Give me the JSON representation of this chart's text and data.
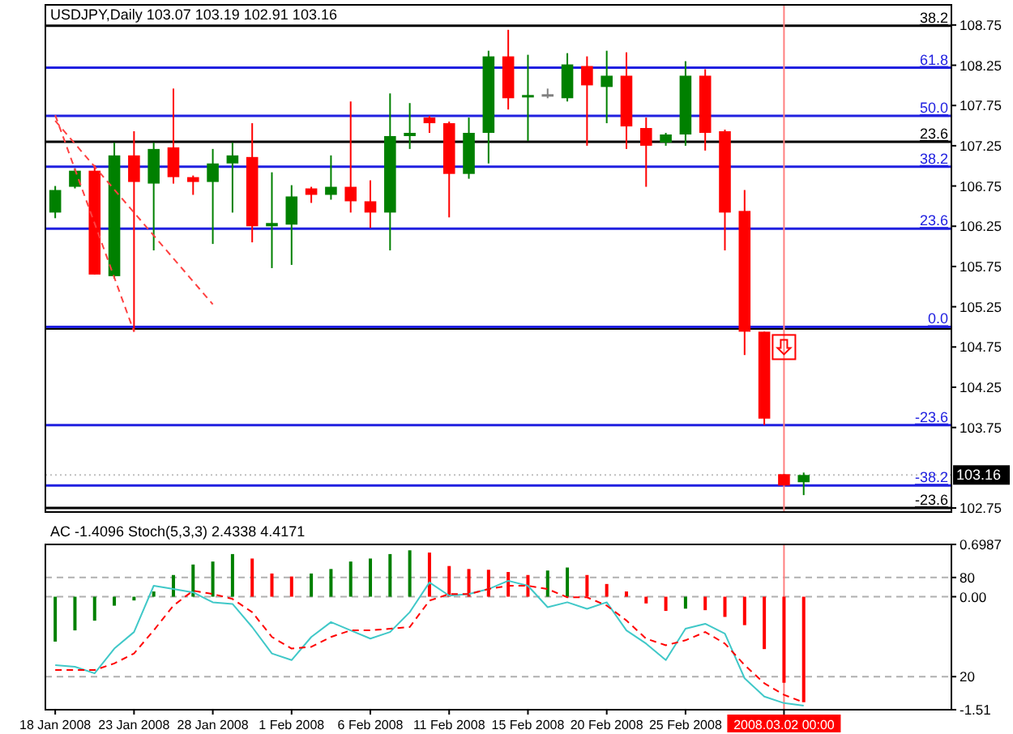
{
  "chart_data": [
    {
      "type": "candlestick",
      "title": "USDJPY,Daily  103.07 103.19 102.91 103.16",
      "tick_labels": "y",
      "categories": [
        "18 Jan 2008",
        null,
        null,
        null,
        "23 Jan 2008",
        null,
        null,
        null,
        "28 Jan 2008",
        null,
        null,
        null,
        "1 Feb 2008",
        null,
        null,
        null,
        "6 Feb 2008",
        null,
        null,
        null,
        "11 Feb 2008",
        null,
        null,
        null,
        "15 Feb 2008",
        null,
        null,
        null,
        "20 Feb 2008",
        null,
        null,
        null,
        "25 Feb 2008",
        null,
        null,
        null,
        null,
        "2008.03.02 00:00",
        null,
        null,
        null,
        null,
        null,
        null,
        null,
        null
      ],
      "ohlc": [
        [
          106.42,
          106.75,
          106.35,
          106.7
        ],
        [
          106.74,
          106.97,
          106.72,
          106.94
        ],
        [
          106.94,
          107.01,
          105.65,
          105.65
        ],
        [
          105.63,
          107.29,
          105.6,
          107.13
        ],
        [
          107.13,
          107.43,
          104.94,
          106.8
        ],
        [
          106.78,
          107.29,
          105.95,
          107.21
        ],
        [
          107.23,
          107.96,
          106.78,
          106.86
        ],
        [
          106.86,
          106.88,
          106.64,
          106.8
        ],
        [
          106.8,
          107.21,
          106.03,
          107.03
        ],
        [
          107.03,
          107.29,
          106.42,
          107.13
        ],
        [
          107.11,
          107.53,
          106.05,
          106.25
        ],
        [
          106.25,
          106.92,
          105.73,
          106.29
        ],
        [
          106.27,
          106.76,
          105.77,
          106.62
        ],
        [
          106.72,
          106.74,
          106.54,
          106.64
        ],
        [
          106.64,
          107.13,
          106.58,
          106.74
        ],
        [
          106.74,
          107.8,
          106.42,
          106.56
        ],
        [
          106.56,
          106.82,
          106.23,
          106.42
        ],
        [
          106.42,
          107.9,
          105.95,
          107.37
        ],
        [
          107.37,
          107.78,
          107.21,
          107.41
        ],
        [
          107.6,
          107.62,
          107.41,
          107.53
        ],
        [
          107.53,
          107.55,
          106.36,
          106.9
        ],
        [
          106.9,
          107.6,
          106.84,
          107.41
        ],
        [
          107.41,
          108.43,
          107.03,
          108.36
        ],
        [
          108.36,
          108.69,
          107.7,
          107.84
        ],
        [
          107.86,
          108.38,
          107.31,
          107.88
        ],
        [
          107.87,
          107.96,
          107.84,
          107.89
        ],
        [
          107.84,
          108.4,
          107.8,
          108.26
        ],
        [
          108.24,
          108.36,
          107.25,
          108.0
        ],
        [
          107.98,
          108.43,
          107.53,
          108.12
        ],
        [
          108.12,
          108.41,
          107.21,
          107.49
        ],
        [
          107.47,
          107.6,
          106.74,
          107.25
        ],
        [
          107.29,
          107.41,
          107.25,
          107.39
        ],
        [
          107.39,
          108.3,
          107.25,
          108.12
        ],
        [
          108.12,
          108.2,
          107.19,
          107.41
        ],
        [
          107.43,
          107.45,
          105.95,
          106.42
        ],
        [
          106.44,
          106.7,
          104.65,
          104.94
        ],
        [
          104.94,
          104.94,
          103.78,
          103.86
        ],
        [
          103.17,
          103.17,
          103.03,
          103.03
        ],
        [
          103.07,
          103.19,
          102.91,
          103.16
        ],
        null,
        null,
        null,
        null,
        null,
        null,
        null
      ],
      "colors": [
        "#008000",
        "#008000",
        "#ff0000",
        "#008000",
        "#ff0000",
        "#008000",
        "#ff0000",
        "#ff0000",
        "#008000",
        "#008000",
        "#ff0000",
        "#008000",
        "#008000",
        "#ff0000",
        "#008000",
        "#ff0000",
        "#ff0000",
        "#008000",
        "#008000",
        "#ff0000",
        "#ff0000",
        "#008000",
        "#008000",
        "#ff0000",
        "#008000",
        "#808080",
        "#008000",
        "#ff0000",
        "#008000",
        "#ff0000",
        "#ff0000",
        "#008000",
        "#008000",
        "#ff0000",
        "#ff0000",
        "#ff0000",
        "#ff0000",
        "#ff0000",
        "#008000",
        null,
        null,
        null,
        null,
        null,
        null,
        null
      ],
      "series": [
        {
          "type": "line",
          "color": "#ff4040",
          "line_style": "dashed",
          "values": [
            107.63,
            null,
            null,
            null,
            104.94,
            null,
            null,
            null,
            null,
            null,
            null,
            null,
            null,
            null,
            null,
            null,
            null,
            null,
            null,
            null,
            null,
            null,
            null,
            null,
            null,
            null,
            null,
            null,
            null,
            null,
            null,
            null,
            null,
            null,
            null,
            null,
            null,
            null,
            null,
            null,
            null,
            null,
            null,
            null,
            null,
            null
          ]
        },
        {
          "type": "line",
          "color": "#ff4040",
          "line_style": "dashed",
          "values": [
            107.56,
            null,
            null,
            null,
            null,
            null,
            null,
            null,
            105.28,
            null,
            null,
            null,
            null,
            null,
            null,
            null,
            null,
            null,
            null,
            null,
            null,
            null,
            null,
            null,
            null,
            null,
            null,
            null,
            null,
            null,
            null,
            null,
            null,
            null,
            null,
            null,
            null,
            null,
            null,
            null,
            null,
            null,
            null,
            null,
            null,
            null
          ]
        }
      ],
      "ylim": [
        102.7,
        109.0
      ],
      "yticks": [
        108.75,
        108.25,
        107.75,
        107.25,
        106.75,
        106.25,
        105.75,
        105.25,
        104.75,
        104.25,
        103.75,
        102.75
      ],
      "ref_lines": [
        {
          "axis": "y",
          "value": 108.74,
          "color": "#000000"
        },
        {
          "axis": "y",
          "value": 108.22,
          "color": "#2020e0"
        },
        {
          "axis": "y",
          "value": 107.62,
          "color": "#2020e0"
        },
        {
          "axis": "y",
          "value": 107.3,
          "color": "#000000"
        },
        {
          "axis": "y",
          "value": 106.99,
          "color": "#2020e0"
        },
        {
          "axis": "y",
          "value": 106.22,
          "color": "#2020e0"
        },
        {
          "axis": "y",
          "value": 104.98,
          "color": "#000000"
        },
        {
          "axis": "y",
          "value": 105.0,
          "color": "#2020e0"
        },
        {
          "axis": "y",
          "value": 103.78,
          "color": "#2020e0"
        },
        {
          "axis": "y",
          "value": 103.03,
          "color": "#2020e0"
        },
        {
          "axis": "y",
          "value": 102.75,
          "color": "#000000"
        },
        {
          "axis": "y",
          "value": 103.16,
          "label": "103.16",
          "color": "#c0c0c0",
          "line_style": "dotted"
        },
        {
          "axis": "x",
          "value": "2008.03.02 00:00",
          "color": "#ff8080"
        }
      ],
      "annotations": [
        {
          "text": "38.2",
          "y": 108.74
        },
        {
          "text": "61.8",
          "y": 108.22
        },
        {
          "text": "50.0",
          "y": 107.62
        },
        {
          "text": "23.6",
          "y": 107.3
        },
        {
          "text": "38.2",
          "y": 106.99
        },
        {
          "text": "23.6",
          "y": 106.22
        },
        {
          "text": "0.0",
          "y": 105.0
        },
        {
          "text": "-23.6",
          "y": 103.78
        },
        {
          "text": "-38.2",
          "y": 103.03
        },
        {
          "text": "-23.6",
          "y": 102.75
        }
      ]
    },
    {
      "type": "bar",
      "title": "AC -1.4096  Stoch(5,3,3) 2.4338 4.4171",
      "categories": [
        "18 Jan 2008",
        null,
        null,
        null,
        "23 Jan 2008",
        null,
        null,
        null,
        "28 Jan 2008",
        null,
        null,
        null,
        "1 Feb 2008",
        null,
        null,
        null,
        "6 Feb 2008",
        null,
        null,
        null,
        "11 Feb 2008",
        null,
        null,
        null,
        "15 Feb 2008",
        null,
        null,
        null,
        "20 Feb 2008",
        null,
        null,
        null,
        "25 Feb 2008",
        null,
        null,
        null,
        null,
        "2008.03.02 00:00",
        null,
        null,
        null,
        null,
        null,
        null,
        null,
        null
      ],
      "series": [
        {
          "type": "bar",
          "colors": [
            "#008000",
            "#008000",
            "#008000",
            "#008000",
            "#008000",
            "#008000",
            "#008000",
            "#008000",
            "#008000",
            "#008000",
            "#ff0000",
            "#ff0000",
            "#ff0000",
            "#008000",
            "#008000",
            "#008000",
            "#008000",
            "#008000",
            "#008000",
            "#ff0000",
            "#ff0000",
            "#ff0000",
            "#ff0000",
            "#ff0000",
            "#ff0000",
            "#008000",
            "#008000",
            "#ff0000",
            "#ff0000",
            "#ff0000",
            "#ff0000",
            "#ff0000",
            "#008000",
            "#ff0000",
            "#ff0000",
            "#ff0000",
            "#ff0000",
            "#ff0000",
            "#ff0000",
            null,
            null,
            null,
            null,
            null,
            null,
            null
          ],
          "values": [
            -0.6,
            -0.45,
            -0.32,
            -0.12,
            -0.05,
            0.07,
            0.29,
            0.43,
            0.47,
            0.57,
            0.51,
            0.31,
            0.27,
            0.31,
            0.37,
            0.47,
            0.51,
            0.57,
            0.62,
            0.59,
            0.41,
            0.37,
            0.36,
            0.33,
            0.29,
            0.35,
            0.39,
            0.29,
            0.17,
            0.07,
            -0.09,
            -0.19,
            -0.16,
            -0.18,
            -0.27,
            -0.38,
            -0.7,
            -1.15,
            -1.41,
            null,
            null,
            null,
            null,
            null,
            null,
            null
          ]
        },
        {
          "type": "line",
          "axis": "y2",
          "color": "#40c8c8",
          "values": [
            27,
            26,
            22,
            37,
            47,
            75,
            73,
            71,
            65,
            64,
            50,
            34,
            30,
            44,
            53,
            48,
            43,
            47,
            59,
            77,
            69,
            70,
            73,
            78,
            75,
            62,
            65,
            61,
            65,
            48,
            40,
            30,
            49,
            52,
            46,
            19,
            8,
            4,
            2.4,
            null,
            null,
            null,
            null,
            null,
            null,
            null
          ]
        },
        {
          "type": "line",
          "axis": "y2",
          "color": "#ff0000",
          "line_style": "dashed",
          "values": [
            24,
            24,
            24,
            28,
            34,
            48,
            63,
            72,
            70,
            67,
            59,
            44,
            37,
            38,
            44,
            48,
            48,
            49,
            50,
            66,
            70,
            70,
            73,
            75,
            75,
            73,
            68,
            68,
            63,
            54,
            43,
            39,
            42,
            47,
            40,
            27,
            16,
            9,
            4.4,
            null,
            null,
            null,
            null,
            null,
            null,
            null
          ]
        }
      ],
      "ylim": [
        -1.51,
        0.6987
      ],
      "yticks": [
        0.6987,
        {
          "value": 0,
          "label": "0.00"
        },
        -1.51
      ],
      "y2lim": [
        0,
        100
      ],
      "y2ticks": [
        80,
        20
      ],
      "grid": true,
      "ref_lines": [
        {
          "axis": "x",
          "value": "2008.03.02 00:00",
          "color": "#ff8080"
        }
      ]
    }
  ]
}
